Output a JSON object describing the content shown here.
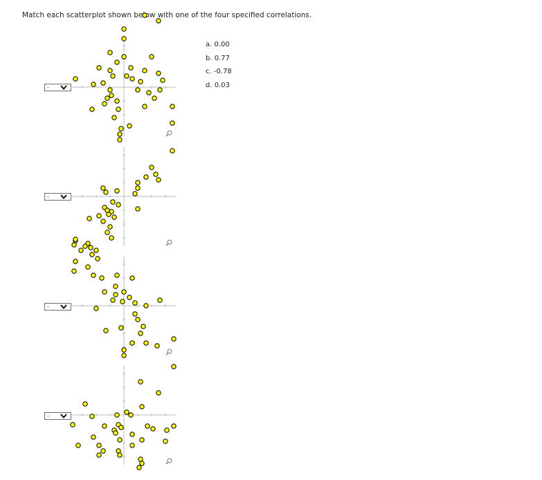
{
  "question": {
    "instruction": "Match each scatterplot shown below with one of the four specified correlations.",
    "choices": [
      "a. 0.00",
      "b. 0.77",
      "c. -0.78",
      "d. 0.03"
    ]
  },
  "plots": [
    {
      "selected": "-",
      "icon": "chevron-down-icon"
    },
    {
      "selected": "-",
      "icon": "chevron-down-icon"
    },
    {
      "selected": "-",
      "icon": "chevron-down-icon"
    },
    {
      "selected": "-",
      "icon": "chevron-down-icon"
    }
  ],
  "colors": {
    "point_fill": "#ffff00",
    "point_stroke": "#000000",
    "axis": "#bbbbbb"
  },
  "tools": {
    "zoom_icon": "magnifier-icon"
  },
  "chart_data": [
    {
      "type": "scatter",
      "points": [
        [
          1.5,
          5.2
        ],
        [
          2.5,
          4.8
        ],
        [
          0,
          4.2
        ],
        [
          0,
          3.5
        ],
        [
          -1,
          2.5
        ],
        [
          0,
          2.2
        ],
        [
          2,
          2.2
        ],
        [
          -1.8,
          1.4
        ],
        [
          -0.5,
          1.8
        ],
        [
          0.5,
          1.4
        ],
        [
          1.5,
          1.2
        ],
        [
          -1,
          1.2
        ],
        [
          2.5,
          1.0
        ],
        [
          -0.8,
          0.8
        ],
        [
          0.2,
          0.8
        ],
        [
          0.6,
          0.6
        ],
        [
          1.2,
          0.4
        ],
        [
          2.8,
          0.5
        ],
        [
          -3.5,
          0.6
        ],
        [
          -2.2,
          0.2
        ],
        [
          -1.5,
          0.3
        ],
        [
          -1,
          -0.2
        ],
        [
          1,
          -0.2
        ],
        [
          1.8,
          -0.4
        ],
        [
          2.6,
          -0.2
        ],
        [
          -0.9,
          -0.6
        ],
        [
          -1.2,
          -0.8
        ],
        [
          -0.5,
          -1
        ],
        [
          -1.4,
          -1.2
        ],
        [
          -0.4,
          -1.6
        ],
        [
          1.5,
          -1.4
        ],
        [
          2.2,
          -0.8
        ],
        [
          -2.3,
          -1.6
        ],
        [
          -0.7,
          -2.2
        ],
        [
          3.5,
          -1.4
        ],
        [
          0.4,
          -2.8
        ],
        [
          -0.2,
          -3.0
        ],
        [
          -0.3,
          -3.4
        ],
        [
          3.5,
          -2.6
        ],
        [
          -0.3,
          -3.8
        ],
        [
          3.5,
          -4.6
        ]
      ]
    },
    {
      "type": "scatter",
      "points": [
        [
          2,
          2.1
        ],
        [
          2.3,
          1.6
        ],
        [
          2.5,
          1.2
        ],
        [
          1.6,
          1.4
        ],
        [
          1,
          1.0
        ],
        [
          1.0,
          0.6
        ],
        [
          0.8,
          0.2
        ],
        [
          -0.5,
          0.4
        ],
        [
          -1.5,
          0.6
        ],
        [
          -1.3,
          0.3
        ],
        [
          -0.4,
          -0.6
        ],
        [
          -0.8,
          -0.4
        ],
        [
          -1.4,
          -0.8
        ],
        [
          -1.2,
          -1.0
        ],
        [
          -0.9,
          -1.1
        ],
        [
          1.0,
          -0.9
        ],
        [
          -1.1,
          -1.3
        ],
        [
          -0.7,
          -1.5
        ],
        [
          -1.8,
          -1.4
        ],
        [
          -1.5,
          -1.8
        ],
        [
          -2.5,
          -1.6
        ],
        [
          -1.0,
          -2.2
        ],
        [
          -1.2,
          -2.6
        ],
        [
          -0.9,
          -3.0
        ],
        [
          -3.5,
          -3.2
        ],
        [
          -2.6,
          -3.4
        ],
        [
          -2.8,
          -3.6
        ],
        [
          -3.1,
          -3.9
        ],
        [
          -2.4,
          -3.7
        ],
        [
          -2.3,
          -4.2
        ],
        [
          -3.6,
          -5.4
        ]
      ]
    },
    {
      "type": "scatter",
      "points": [
        [
          -3.5,
          4.8
        ],
        [
          -3.6,
          4.4
        ],
        [
          -2,
          4.0
        ],
        [
          -1.9,
          3.4
        ],
        [
          -3.5,
          3.2
        ],
        [
          -2.6,
          2.8
        ],
        [
          -2.2,
          2.2
        ],
        [
          -1.6,
          2.0
        ],
        [
          -0.5,
          2.2
        ],
        [
          -0.6,
          1.4
        ],
        [
          0.6,
          2.0
        ],
        [
          -1.4,
          1.0
        ],
        [
          -0.6,
          0.8
        ],
        [
          0,
          1.0
        ],
        [
          0.4,
          0.6
        ],
        [
          -0.8,
          0.4
        ],
        [
          -0.1,
          0.3
        ],
        [
          0.8,
          0.2
        ],
        [
          -2.0,
          -0.2
        ],
        [
          1.6,
          0
        ],
        [
          2.6,
          0.4
        ],
        [
          0.8,
          -0.6
        ],
        [
          1.0,
          -1.0
        ],
        [
          -1.3,
          -1.8
        ],
        [
          -0.2,
          -1.6
        ],
        [
          1.4,
          -1.5
        ],
        [
          1.2,
          -2.0
        ],
        [
          3.6,
          -2.4
        ],
        [
          0.6,
          -2.7
        ],
        [
          1.6,
          -2.7
        ],
        [
          2.4,
          -2.9
        ],
        [
          3.6,
          -4.4
        ]
      ]
    },
    {
      "type": "scatter",
      "points": [
        [
          0,
          4.7
        ],
        [
          0,
          4.3
        ],
        [
          1.2,
          2.4
        ],
        [
          2.5,
          1.6
        ],
        [
          -2.8,
          0.8
        ],
        [
          1.3,
          0.6
        ],
        [
          0.2,
          0.2
        ],
        [
          0.5,
          0.0
        ],
        [
          -2.3,
          -0.1
        ],
        [
          -0.5,
          0.0
        ],
        [
          -1.4,
          -0.8
        ],
        [
          -0.4,
          -0.7
        ],
        [
          -0.2,
          -0.9
        ],
        [
          -0.7,
          -1.1
        ],
        [
          -0.6,
          -1.3
        ],
        [
          1.7,
          -0.8
        ],
        [
          3.6,
          -0.8
        ],
        [
          -3.7,
          -0.7
        ],
        [
          2.1,
          -1.0
        ],
        [
          3.1,
          -1.1
        ],
        [
          0.6,
          -1.4
        ],
        [
          -2.2,
          -1.6
        ],
        [
          -0.3,
          -1.8
        ],
        [
          1.3,
          -1.8
        ],
        [
          3,
          -1.9
        ],
        [
          -3.3,
          -2.2
        ],
        [
          -1.8,
          -2.2
        ],
        [
          0.6,
          -2.2
        ],
        [
          -1.5,
          -2.6
        ],
        [
          -0.4,
          -2.6
        ],
        [
          -0.3,
          -2.9
        ],
        [
          -1.8,
          -2.9
        ],
        [
          1.2,
          -3.2
        ],
        [
          1.3,
          -3.5
        ],
        [
          1.1,
          -3.8
        ]
      ]
    }
  ]
}
